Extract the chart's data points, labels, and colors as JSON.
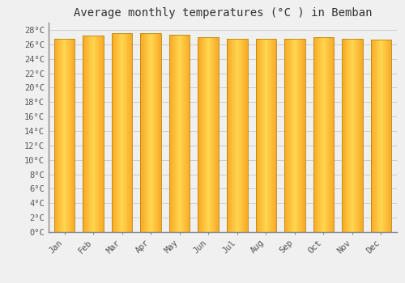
{
  "title": "Average monthly temperatures (°C ) in Bemban",
  "months": [
    "Jan",
    "Feb",
    "Mar",
    "Apr",
    "May",
    "Jun",
    "Jul",
    "Aug",
    "Sep",
    "Oct",
    "Nov",
    "Dec"
  ],
  "values": [
    26.8,
    27.2,
    27.6,
    27.6,
    27.3,
    27.0,
    26.8,
    26.8,
    26.8,
    27.0,
    26.8,
    26.6
  ],
  "ylim": [
    0,
    29
  ],
  "yticks": [
    0,
    2,
    4,
    6,
    8,
    10,
    12,
    14,
    16,
    18,
    20,
    22,
    24,
    26,
    28
  ],
  "bar_color_center": "#FFD54F",
  "bar_color_edge": "#F9A825",
  "bar_outline_color": "#B8860B",
  "background_color": "#f0f0f0",
  "grid_color": "#cccccc",
  "title_fontsize": 10,
  "tick_fontsize": 7.5
}
